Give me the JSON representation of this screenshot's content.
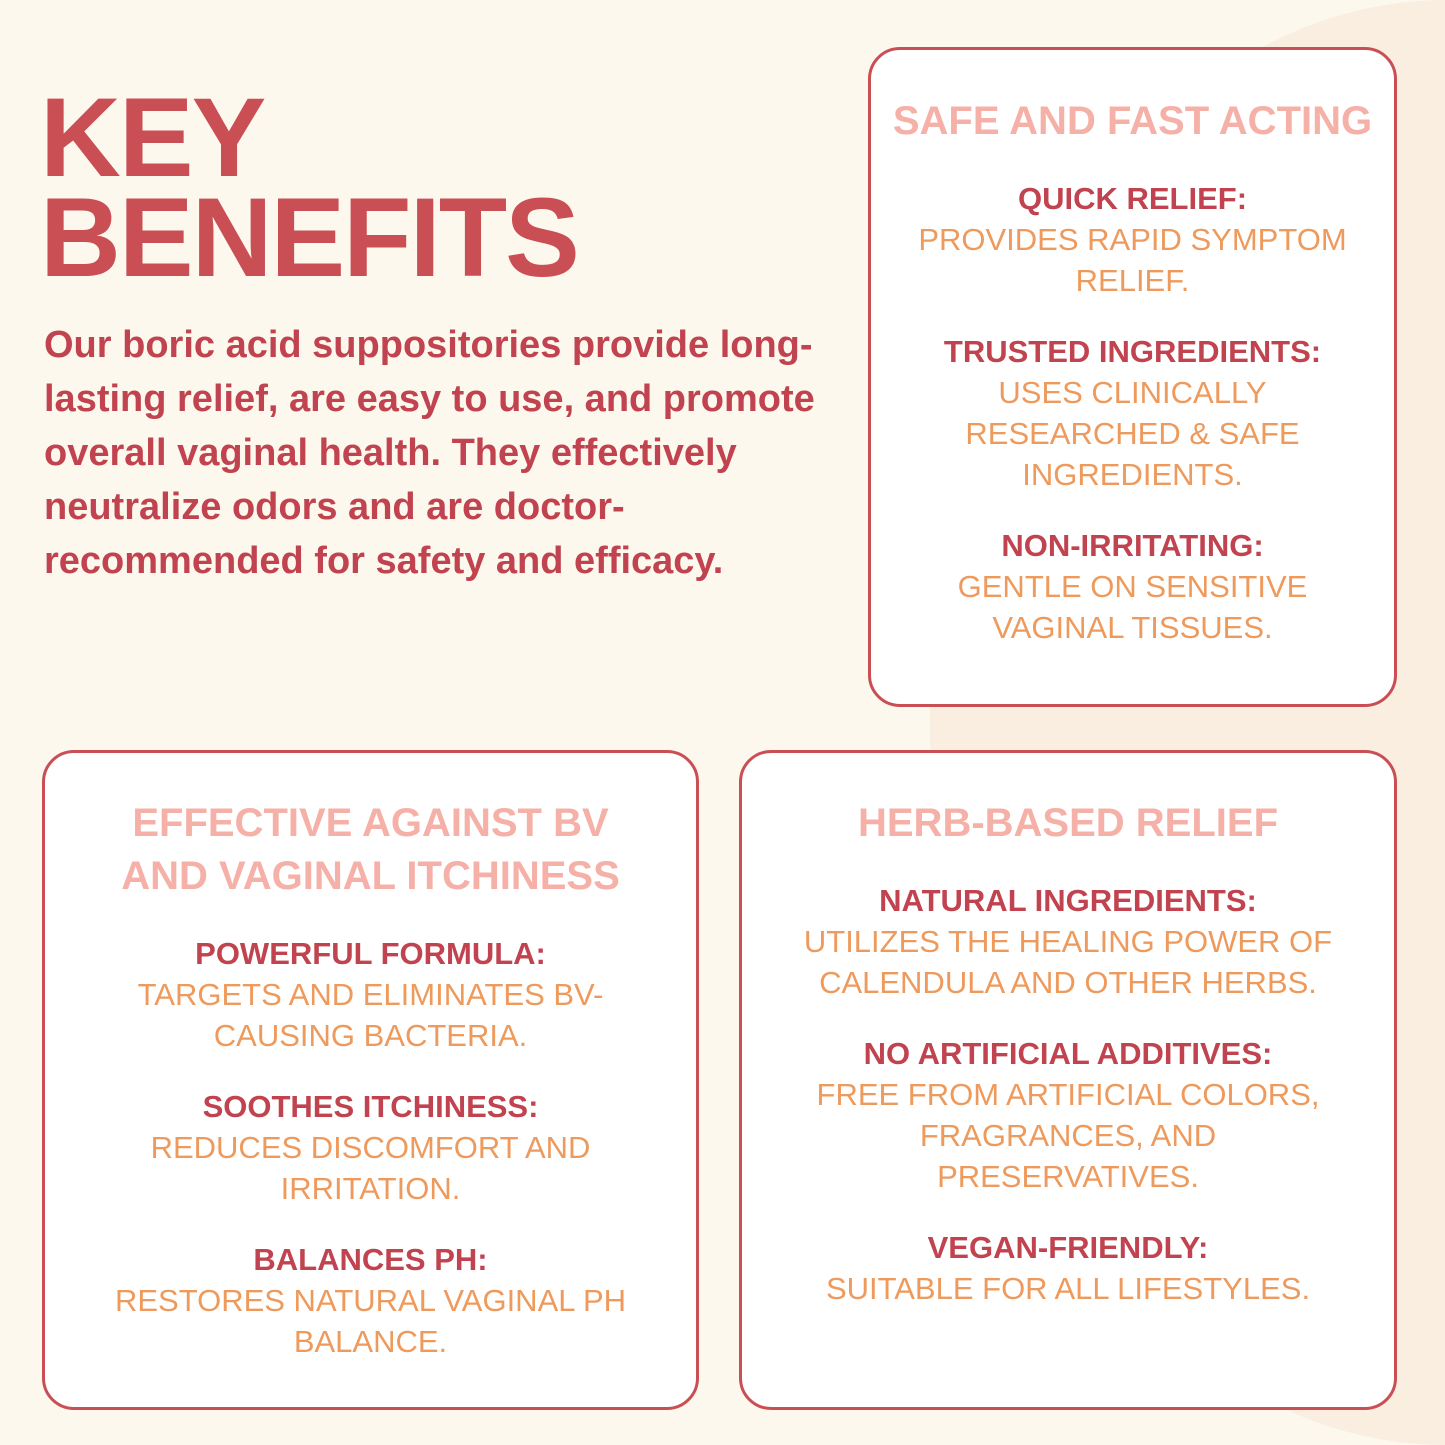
{
  "title_lines": [
    "KEY",
    "BENEFITS"
  ],
  "intro": "Our boric acid suppositories provide long-lasting relief, are easy to use, and promote overall vaginal health. They effectively neutralize odors and are doctor-recommended for safety and efficacy.",
  "colors": {
    "background": "#fdf8ee",
    "border": "#c94f55",
    "heading": "#f5b0a8",
    "label": "#c0434f",
    "text": "#ee9a5c"
  },
  "boxes": [
    {
      "heading": "SAFE AND FAST ACTING",
      "items": [
        {
          "label": "QUICK RELIEF:",
          "desc": "PROVIDES RAPID SYMPTOM RELIEF."
        },
        {
          "label": "TRUSTED INGREDIENTS:",
          "desc": "USES CLINICALLY RESEARCHED & SAFE INGREDIENTS."
        },
        {
          "label": "NON-IRRITATING:",
          "desc": "GENTLE ON SENSITIVE VAGINAL TISSUES."
        }
      ]
    },
    {
      "heading": "EFFECTIVE AGAINST BV AND VAGINAL ITCHINESS",
      "items": [
        {
          "label": "POWERFUL FORMULA:",
          "desc": "TARGETS AND ELIMINATES BV-CAUSING BACTERIA."
        },
        {
          "label": "SOOTHES ITCHINESS:",
          "desc": "REDUCES DISCOMFORT AND IRRITATION."
        },
        {
          "label": "BALANCES PH:",
          "desc": "RESTORES NATURAL VAGINAL PH BALANCE."
        }
      ]
    },
    {
      "heading": "HERB-BASED RELIEF",
      "items": [
        {
          "label": "NATURAL INGREDIENTS:",
          "desc": "UTILIZES THE HEALING POWER OF CALENDULA AND OTHER HERBS."
        },
        {
          "label": "NO ARTIFICIAL ADDITIVES:",
          "desc": "FREE FROM ARTIFICIAL COLORS, FRAGRANCES, AND PRESERVATIVES."
        },
        {
          "label": "VEGAN-FRIENDLY:",
          "desc": "SUITABLE FOR ALL LIFESTYLES."
        }
      ]
    }
  ]
}
